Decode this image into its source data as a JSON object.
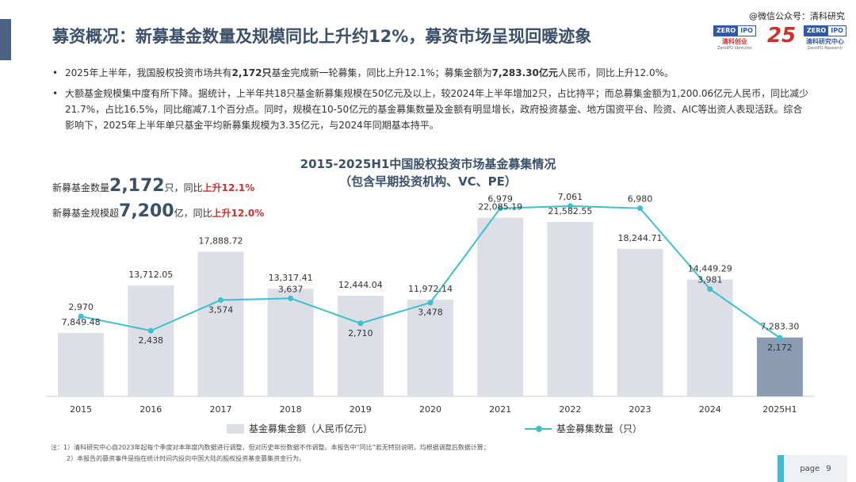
{
  "header": {
    "title": "募资概况：新募基金数量及规模同比上升约12%，募资市场呈现回暖迹象",
    "watermark": "@微信公众号：清科研究"
  },
  "logos": [
    {
      "mark_a": "ZERO",
      "mark_b": "IPO",
      "cn": "清科创业",
      "en": "ZeroIPO Ventures"
    },
    {
      "mark": "25"
    },
    {
      "mark_a": "ZERO",
      "mark_b": "IPO",
      "cn": "清科研究中心",
      "en": "ZeroIPO Research"
    }
  ],
  "bullets": [
    {
      "b": "•",
      "t1": "2025年上半年，我国股权投资市场共有",
      "h1": "2,172只",
      "t2": "基金完成新一轮募集，同比上升12.1%；募集金额为",
      "h2": "7,283.30亿元",
      "t3": "人民币，同比上升12.0%。"
    },
    {
      "b": "•",
      "text": "大额基金规模集中度有所下降。据统计，上半年共18只基金新募集规模在50亿元及以上，较2024年上半年增加2只，占比持平；而总募集金额为1,200.06亿元人民币，同比减少21.7%，占比16.5%，同比缩减7.1个百分点。同时，规模在10-50亿元的基金募集数量及金额有明显增长，政府投资基金、地方国资平台、险资、AIC等出资人表现活跃。综合影响下，2025年上半年单只基金平均新募集规模为3.35亿元，与2024年同期基本持平。"
    }
  ],
  "callouts": [
    {
      "pre": "新募基金数量",
      "big": "2,172",
      "mid": "只，同比",
      "red": "上升12.1%"
    },
    {
      "pre": "新募基金规模超",
      "big": "7,200",
      "mid": "亿，同比",
      "red": "上升12.0%"
    }
  ],
  "chart_data": {
    "type": "bar",
    "title": "2015-2025H1中国股权投资市场基金募集情况",
    "subtitle": "（包含早期投资机构、VC、PE）",
    "categories": [
      "2015",
      "2016",
      "2017",
      "2018",
      "2019",
      "2020",
      "2021",
      "2022",
      "2023",
      "2024",
      "2025H1"
    ],
    "series": [
      {
        "name": "基金募集金额（人民币亿元）",
        "type": "bar",
        "values": [
          7849.48,
          13712.05,
          17888.72,
          13317.41,
          12444.04,
          11972.14,
          22085.19,
          21582.55,
          18244.71,
          14449.29,
          7283.3
        ],
        "labels": [
          "7,849.48",
          "13,712.05",
          "17,888.72",
          "13,317.41",
          "12,444.04",
          "11,972.14",
          "22,085.19",
          "21,582.55",
          "18,244.71",
          "14,449.29",
          "7,283.30"
        ],
        "color": "#dcdfe5",
        "highlight_color": "#8b9bb2"
      },
      {
        "name": "基金募集数量（只）",
        "type": "line",
        "values": [
          2970,
          2438,
          3574,
          3637,
          2710,
          3478,
          6979,
          7061,
          6980,
          3981,
          2172
        ],
        "labels": [
          "2,970",
          "2,438",
          "3,574",
          "3,637",
          "2,710",
          "3,478",
          "6,979",
          "7,061",
          "6,980",
          "3,981",
          "2,172"
        ],
        "color": "#3cc0cf"
      }
    ],
    "bar_ylim": [
      0,
      25000
    ],
    "line_ylim": [
      0,
      7500
    ],
    "grid": false,
    "legend": "bottom"
  },
  "notes": [
    "注：1）清科研究中心自2023年起每个季度对本年度内数据进行调整，但对历史年份数据不作调整。本报告中“同比”若无特别说明，均根据调整后数据计算；",
    "2）本报告的募资事件是指在统计时间内投向中国大陆的股权投资基金募集资金行为。"
  ],
  "page": {
    "label": "page",
    "number": "9"
  }
}
